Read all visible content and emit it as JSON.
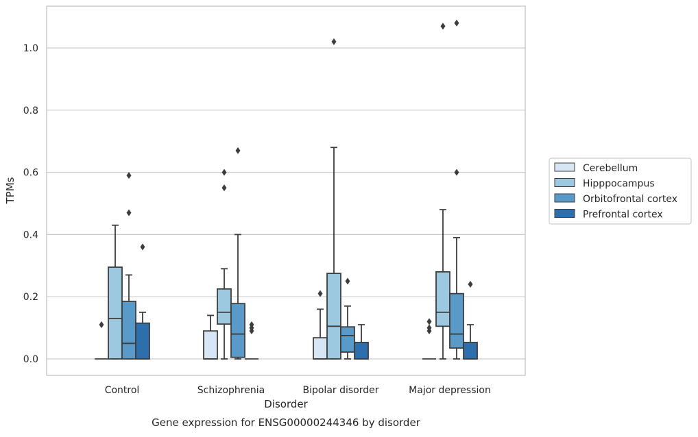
{
  "chart_data": {
    "type": "boxplot",
    "caption": "Gene expression for ENSG00000244346 by disorder",
    "xlabel": "Disorder",
    "ylabel": "TPMs",
    "ylim": [
      -0.05,
      1.14
    ],
    "yticks": [
      "0.0",
      "0.2",
      "0.4",
      "0.6",
      "0.8",
      "1.0"
    ],
    "grid": "horizontal",
    "legend_position": "right",
    "categories": [
      "Control",
      "Schizophrenia",
      "Bipolar disorder",
      "Major depression"
    ],
    "series": [
      {
        "name": "Cerebellum",
        "color": "#d6e6f4",
        "boxes": [
          {
            "min": 0.0,
            "q1": 0.0,
            "median": 0.0,
            "q3": 0.0,
            "max": 0.0,
            "outliers": [
              0.11
            ]
          },
          {
            "min": 0.0,
            "q1": 0.0,
            "median": 0.0,
            "q3": 0.09,
            "max": 0.14,
            "outliers": []
          },
          {
            "min": 0.0,
            "q1": 0.0,
            "median": 0.0,
            "q3": 0.068,
            "max": 0.16,
            "outliers": [
              0.21
            ]
          },
          {
            "min": 0.0,
            "q1": 0.0,
            "median": 0.0,
            "q3": 0.0,
            "max": 0.0,
            "outliers": [
              0.09,
              0.1,
              0.12
            ]
          }
        ]
      },
      {
        "name": "Hipppocampus",
        "color": "#9cc8e0",
        "boxes": [
          {
            "min": 0.0,
            "q1": 0.0,
            "median": 0.13,
            "q3": 0.295,
            "max": 0.43,
            "outliers": []
          },
          {
            "min": 0.0,
            "q1": 0.112,
            "median": 0.15,
            "q3": 0.225,
            "max": 0.29,
            "outliers": [
              0.55,
              0.6
            ]
          },
          {
            "min": 0.0,
            "q1": 0.0,
            "median": 0.105,
            "q3": 0.275,
            "max": 0.68,
            "outliers": [
              1.02
            ]
          },
          {
            "min": 0.0,
            "q1": 0.105,
            "median": 0.15,
            "q3": 0.28,
            "max": 0.48,
            "outliers": [
              1.07
            ]
          }
        ]
      },
      {
        "name": "Orbitofrontal cortex",
        "color": "#5a9ac9",
        "boxes": [
          {
            "min": 0.0,
            "q1": 0.0,
            "median": 0.05,
            "q3": 0.185,
            "max": 0.27,
            "outliers": [
              0.47,
              0.59
            ]
          },
          {
            "min": 0.0,
            "q1": 0.005,
            "median": 0.08,
            "q3": 0.178,
            "max": 0.4,
            "outliers": [
              0.67
            ]
          },
          {
            "min": 0.0,
            "q1": 0.022,
            "median": 0.075,
            "q3": 0.103,
            "max": 0.17,
            "outliers": [
              0.25
            ]
          },
          {
            "min": 0.0,
            "q1": 0.035,
            "median": 0.08,
            "q3": 0.21,
            "max": 0.39,
            "outliers": [
              0.6,
              1.08
            ]
          }
        ]
      },
      {
        "name": "Prefrontal cortex",
        "color": "#2d6fad",
        "boxes": [
          {
            "min": 0.0,
            "q1": 0.0,
            "median": 0.0,
            "q3": 0.115,
            "max": 0.15,
            "outliers": [
              0.36
            ]
          },
          {
            "min": 0.0,
            "q1": 0.0,
            "median": 0.0,
            "q3": 0.0,
            "max": 0.0,
            "outliers": [
              0.09,
              0.1,
              0.11
            ]
          },
          {
            "min": 0.0,
            "q1": 0.0,
            "median": 0.0,
            "q3": 0.053,
            "max": 0.11,
            "outliers": []
          },
          {
            "min": 0.0,
            "q1": 0.0,
            "median": 0.0,
            "q3": 0.053,
            "max": 0.11,
            "outliers": [
              0.24
            ]
          }
        ]
      }
    ]
  }
}
